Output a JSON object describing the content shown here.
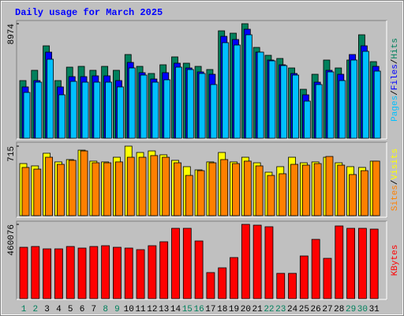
{
  "title": "Daily usage for March 2025",
  "legend_separator": "/",
  "chart_data": [
    {
      "type": "bar",
      "ylim": [
        0,
        8974
      ],
      "yticks": [
        8974
      ],
      "series": [
        {
          "name": "Hits",
          "color": "#00805c",
          "values": [
            4518,
            5323,
            7241,
            4518,
            5570,
            5632,
            5323,
            5632,
            5323,
            6560,
            5632,
            5075,
            5756,
            6375,
            5880,
            5632,
            5384,
            8417,
            8231,
            8974,
            7117,
            6498,
            6251,
            5508,
            3837,
            5013,
            6127,
            5508,
            6127,
            8107,
            6003
          ]
        },
        {
          "name": "Files",
          "color": "#0000ff",
          "values": [
            4023,
            4518,
            6746,
            4023,
            4827,
            4827,
            4889,
            4889,
            4518,
            5941,
            5137,
            4642,
            5137,
            5880,
            5508,
            5199,
            5013,
            7984,
            7736,
            8541,
            6746,
            6127,
            5756,
            5075,
            3404,
            4394,
            5323,
            5013,
            6560,
            7241,
            5632
          ]
        },
        {
          "name": "Pages",
          "color": "#00c0ff",
          "values": [
            3590,
            4394,
            6189,
            3404,
            4456,
            4394,
            4394,
            4394,
            4023,
            5508,
            4951,
            4394,
            4580,
            5570,
            5384,
            5075,
            4208,
            7489,
            7303,
            8107,
            6746,
            6065,
            5694,
            4951,
            2909,
            4208,
            5199,
            4518,
            6127,
            6808,
            5261
          ]
        }
      ]
    },
    {
      "type": "bar",
      "ylim": [
        0,
        715
      ],
      "yticks": [
        715
      ],
      "series": [
        {
          "name": "Visits",
          "color": "#ffff00",
          "values": [
            536,
            512,
            642,
            553,
            577,
            674,
            561,
            553,
            601,
            715,
            650,
            666,
            626,
            569,
            504,
            471,
            553,
            650,
            553,
            601,
            544,
            447,
            504,
            601,
            544,
            553,
            601,
            544,
            504,
            496,
            561
          ]
        },
        {
          "name": "Sites",
          "color": "#ff8000",
          "values": [
            496,
            479,
            601,
            528,
            569,
            666,
            544,
            544,
            553,
            601,
            601,
            618,
            601,
            544,
            414,
            463,
            544,
            577,
            536,
            561,
            512,
            414,
            431,
            528,
            520,
            536,
            609,
            520,
            423,
            463,
            561
          ]
        }
      ]
    },
    {
      "type": "bar",
      "ylim": [
        0,
        460076
      ],
      "yticks": [
        460076
      ],
      "categories": [
        "1",
        "2",
        "3",
        "4",
        "5",
        "6",
        "7",
        "8",
        "9",
        "10",
        "11",
        "12",
        "13",
        "14",
        "15",
        "16",
        "17",
        "18",
        "19",
        "20",
        "21",
        "22",
        "23",
        "24",
        "25",
        "26",
        "27",
        "28",
        "29",
        "30",
        "31"
      ],
      "category_colors": [
        "#00805c",
        "#00805c",
        "#000000",
        "#000000",
        "#000000",
        "#000000",
        "#000000",
        "#00805c",
        "#00805c",
        "#000000",
        "#000000",
        "#000000",
        "#000000",
        "#000000",
        "#00805c",
        "#00805c",
        "#000000",
        "#000000",
        "#000000",
        "#000000",
        "#000000",
        "#00805c",
        "#00805c",
        "#000000",
        "#000000",
        "#000000",
        "#000000",
        "#000000",
        "#00805c",
        "#00805c",
        "#000000"
      ],
      "series": [
        {
          "name": "KBytes",
          "color": "#ff0000",
          "values": [
            318110,
            323004,
            308322,
            308322,
            323004,
            313216,
            323004,
            327898,
            318110,
            313216,
            303428,
            327898,
            352368,
            435566,
            435566,
            357262,
            161502,
            190866,
            254488,
            460076,
            455142,
            445354,
            156608,
            156608,
            264276,
            367050,
            249594,
            450248,
            435566,
            435566,
            430672
          ]
        }
      ]
    }
  ]
}
